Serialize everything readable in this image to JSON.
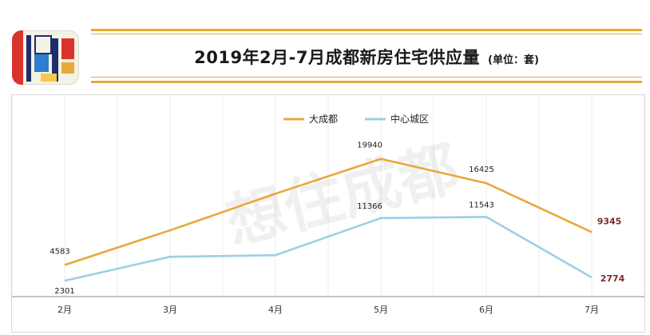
{
  "header": {
    "title": "2019年2月-7月成都新房住宅供应量",
    "unit": "(单位：套)"
  },
  "watermark": "想住成都",
  "colors": {
    "series_a": "#e8a83a",
    "series_b": "#9ecfe4",
    "last_label": "#7b2b2b",
    "accent": "#e8a83a"
  },
  "chart_data": {
    "type": "line",
    "categories": [
      "2月",
      "3月",
      "4月",
      "5月",
      "6月",
      "7月"
    ],
    "series": [
      {
        "name": "大成都",
        "values": [
          4583,
          9600,
          14900,
          19940,
          16425,
          9345
        ]
      },
      {
        "name": "中心城区",
        "values": [
          2301,
          5770,
          6000,
          11366,
          11543,
          2774
        ]
      }
    ],
    "data_labels": [
      {
        "series": 0,
        "index": 0,
        "text": "4583"
      },
      {
        "series": 0,
        "index": 3,
        "text": "19940"
      },
      {
        "series": 0,
        "index": 4,
        "text": "16425"
      },
      {
        "series": 0,
        "index": 5,
        "text": "9345"
      },
      {
        "series": 1,
        "index": 0,
        "text": "2301"
      },
      {
        "series": 1,
        "index": 3,
        "text": "11366"
      },
      {
        "series": 1,
        "index": 4,
        "text": "11543"
      },
      {
        "series": 1,
        "index": 5,
        "text": "2774"
      }
    ],
    "ylim": [
      0,
      25000
    ],
    "legend_position": "top",
    "grid": "vertical"
  }
}
